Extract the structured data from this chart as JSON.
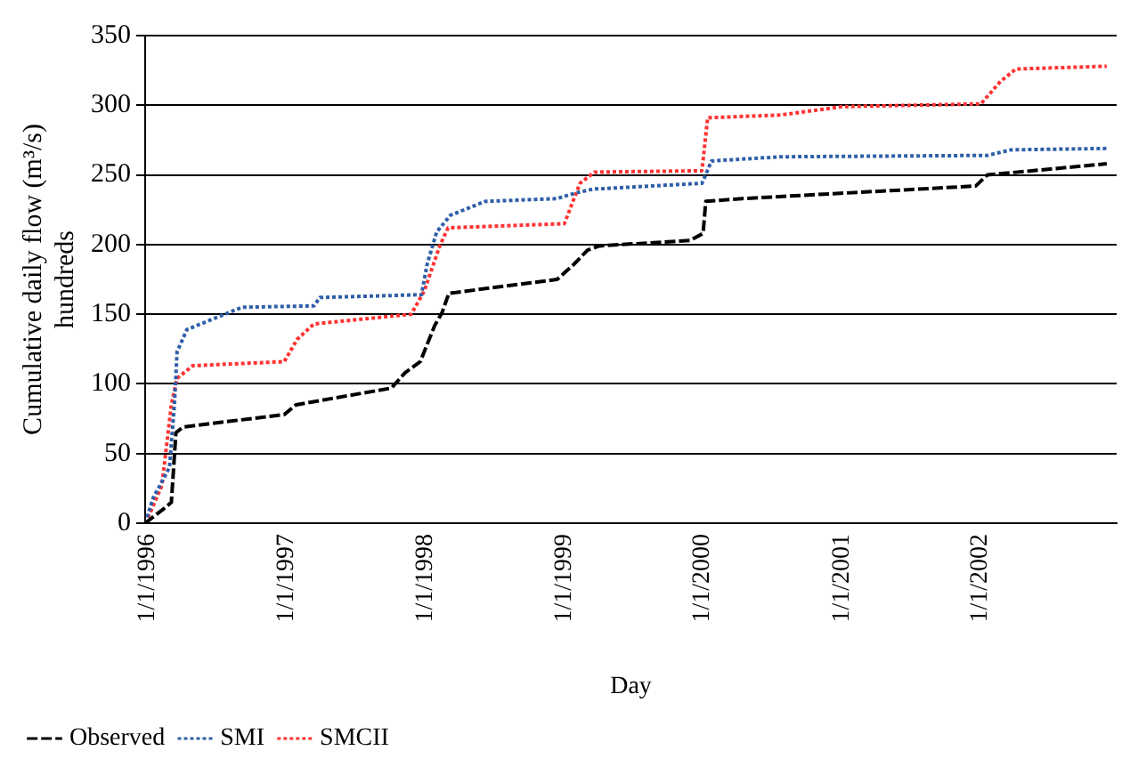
{
  "chart_data": {
    "type": "line",
    "xlabel": "Day",
    "ylabel": "Cumulative daily flow (m³/s)\nhundreds",
    "xlim": [
      "1996-01-01",
      "2002-12-31"
    ],
    "xticks": [
      {
        "value": "1996-01-01",
        "label": "1/1/1996"
      },
      {
        "value": "1997-01-01",
        "label": "1/1/1997"
      },
      {
        "value": "1998-01-01",
        "label": "1/1/1998"
      },
      {
        "value": "1999-01-01",
        "label": "1/1/1999"
      },
      {
        "value": "2000-01-01",
        "label": "1/1/2000"
      },
      {
        "value": "2001-01-01",
        "label": "1/1/2001"
      },
      {
        "value": "2002-01-01",
        "label": "1/1/2002"
      }
    ],
    "ylim": [
      0,
      350
    ],
    "yticks": [
      0,
      50,
      100,
      150,
      200,
      250,
      300,
      350
    ],
    "grid": "y",
    "legend": "bottom",
    "marker": "none",
    "series": [
      {
        "name": "Observed",
        "color": "#000000",
        "line_style": "dashed",
        "x": [
          "1996-01-01",
          "1996-02-22",
          "1996-03-10",
          "1996-03-22",
          "1996-04-10",
          "1997-01-01",
          "1997-02-01",
          "1997-10-10",
          "1997-11-15",
          "1997-12-25",
          "1998-02-01",
          "1998-02-20",
          "1998-03-10",
          "1998-12-20",
          "1999-01-30",
          "1999-03-10",
          "1999-04-10",
          "1999-12-05",
          "2000-01-08",
          "2000-01-15",
          "2000-04-20",
          "2001-12-25",
          "2002-01-25",
          "2002-12-05"
        ],
        "values": [
          0,
          11,
          15,
          65,
          69,
          78,
          85,
          97,
          108,
          116,
          142,
          151,
          165,
          175,
          185,
          196,
          199,
          203,
          208,
          231,
          233,
          242,
          250,
          258
        ]
      },
      {
        "name": "SMI",
        "color": "#2e5fa8",
        "line_style": "dotted",
        "x": [
          "1996-01-01",
          "1996-01-22",
          "1996-03-05",
          "1996-03-18",
          "1996-03-25",
          "1996-04-20",
          "1996-07-01",
          "1996-09-12",
          "1997-03-20",
          "1997-04-05",
          "1997-12-28",
          "1998-01-12",
          "1998-02-06",
          "1998-03-14",
          "1998-06-14",
          "1998-12-20",
          "1999-02-06",
          "1999-03-28",
          "1999-04-10",
          "2000-01-05",
          "2000-01-30",
          "2000-07-30",
          "2002-01-25",
          "2002-03-28",
          "2002-12-05"
        ],
        "values": [
          0,
          18,
          40,
          85,
          123,
          139,
          147,
          155,
          156,
          162,
          164,
          186,
          209,
          221,
          231,
          233,
          237,
          240,
          240,
          244,
          260,
          263,
          264,
          268,
          269
        ]
      },
      {
        "name": "SMCII",
        "color": "#ff3333",
        "line_style": "dotted",
        "x": [
          "1996-01-01",
          "1996-01-15",
          "1996-02-14",
          "1996-03-10",
          "1996-03-25",
          "1996-05-05",
          "1997-01-01",
          "1997-02-04",
          "1997-03-20",
          "1997-12-01",
          "1998-01-05",
          "1998-02-14",
          "1998-03-08",
          "1999-01-08",
          "1999-02-18",
          "1999-03-28",
          "2000-01-05",
          "2000-01-20",
          "2000-07-30",
          "2001-01-08",
          "2002-01-08",
          "2002-02-28",
          "2002-04-10",
          "2002-12-05"
        ],
        "values": [
          0,
          8,
          27,
          85,
          104,
          113,
          116,
          132,
          143,
          150,
          167,
          199,
          212,
          215,
          244,
          252,
          253,
          291,
          293,
          299,
          301,
          317,
          326,
          328
        ]
      }
    ]
  }
}
